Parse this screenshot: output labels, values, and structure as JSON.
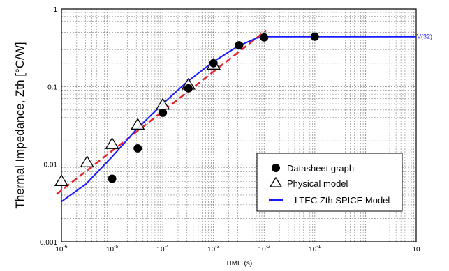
{
  "chart_data": {
    "type": "scatter",
    "xscale": "log",
    "yscale": "log",
    "xlim": [
      1e-06,
      10
    ],
    "ylim": [
      0.001,
      1
    ],
    "grid": true,
    "xlabel": "TIME  (s)",
    "ylabel": "Thermal Impedance, Zth [°C/W]",
    "xticks": [
      {
        "value": 1e-06,
        "base": "10",
        "exp": "-6"
      },
      {
        "value": 1e-05,
        "base": "10",
        "exp": "-5"
      },
      {
        "value": 0.0001,
        "base": "10",
        "exp": "-4"
      },
      {
        "value": 0.001,
        "base": "10",
        "exp": "-3"
      },
      {
        "value": 0.01,
        "base": "10",
        "exp": "-2"
      },
      {
        "value": 0.1,
        "base": "10",
        "exp": "-1"
      },
      {
        "value": 10,
        "base": "10",
        "exp": ""
      }
    ],
    "yticks": [
      {
        "value": 0.001,
        "label": "0.001"
      },
      {
        "value": 0.01,
        "label": "0.01"
      },
      {
        "value": 0.1,
        "label": "0.1"
      },
      {
        "value": 1,
        "label": "1"
      }
    ],
    "legend_position": "bottom-right",
    "series": [
      {
        "name": "Datasheet  graph",
        "kind": "markers",
        "marker": "filled-circle",
        "color": "#000000",
        "points": [
          [
            1e-05,
            0.0065
          ],
          [
            3.2e-05,
            0.016
          ],
          [
            0.0001,
            0.046
          ],
          [
            0.00032,
            0.095
          ],
          [
            0.001,
            0.2
          ],
          [
            0.0032,
            0.34
          ],
          [
            0.01,
            0.43
          ],
          [
            0.1,
            0.44
          ]
        ]
      },
      {
        "name": "Physical model",
        "kind": "markers",
        "marker": "open-triangle",
        "color": "#000000",
        "points": [
          [
            1e-06,
            0.006
          ],
          [
            3.2e-06,
            0.0105
          ],
          [
            1e-05,
            0.018
          ],
          [
            3.2e-05,
            0.032
          ],
          [
            0.0001,
            0.058
          ],
          [
            0.00032,
            0.105
          ],
          [
            0.001,
            0.19
          ]
        ]
      },
      {
        "name": "LTEC Zth SPICE Model",
        "kind": "line",
        "color": "#1a1aff",
        "points": [
          [
            1e-06,
            0.0033
          ],
          [
            3e-06,
            0.0055
          ],
          [
            1e-05,
            0.0125
          ],
          [
            3e-05,
            0.028
          ],
          [
            0.0001,
            0.06
          ],
          [
            0.0003,
            0.115
          ],
          [
            0.001,
            0.21
          ],
          [
            0.003,
            0.33
          ],
          [
            0.007,
            0.42
          ],
          [
            0.01,
            0.44
          ],
          [
            10,
            0.44
          ]
        ],
        "annotation": "V(32)"
      },
      {
        "kind": "line",
        "style": "dashed",
        "color": "#e8202a",
        "points": [
          [
            8e-07,
            0.0041
          ],
          [
            0.011,
            0.53
          ]
        ]
      }
    ]
  },
  "colors": {
    "axis": "#000000",
    "grid": "#808080",
    "spice": "#1a1aff",
    "fit": "#e8202a"
  }
}
